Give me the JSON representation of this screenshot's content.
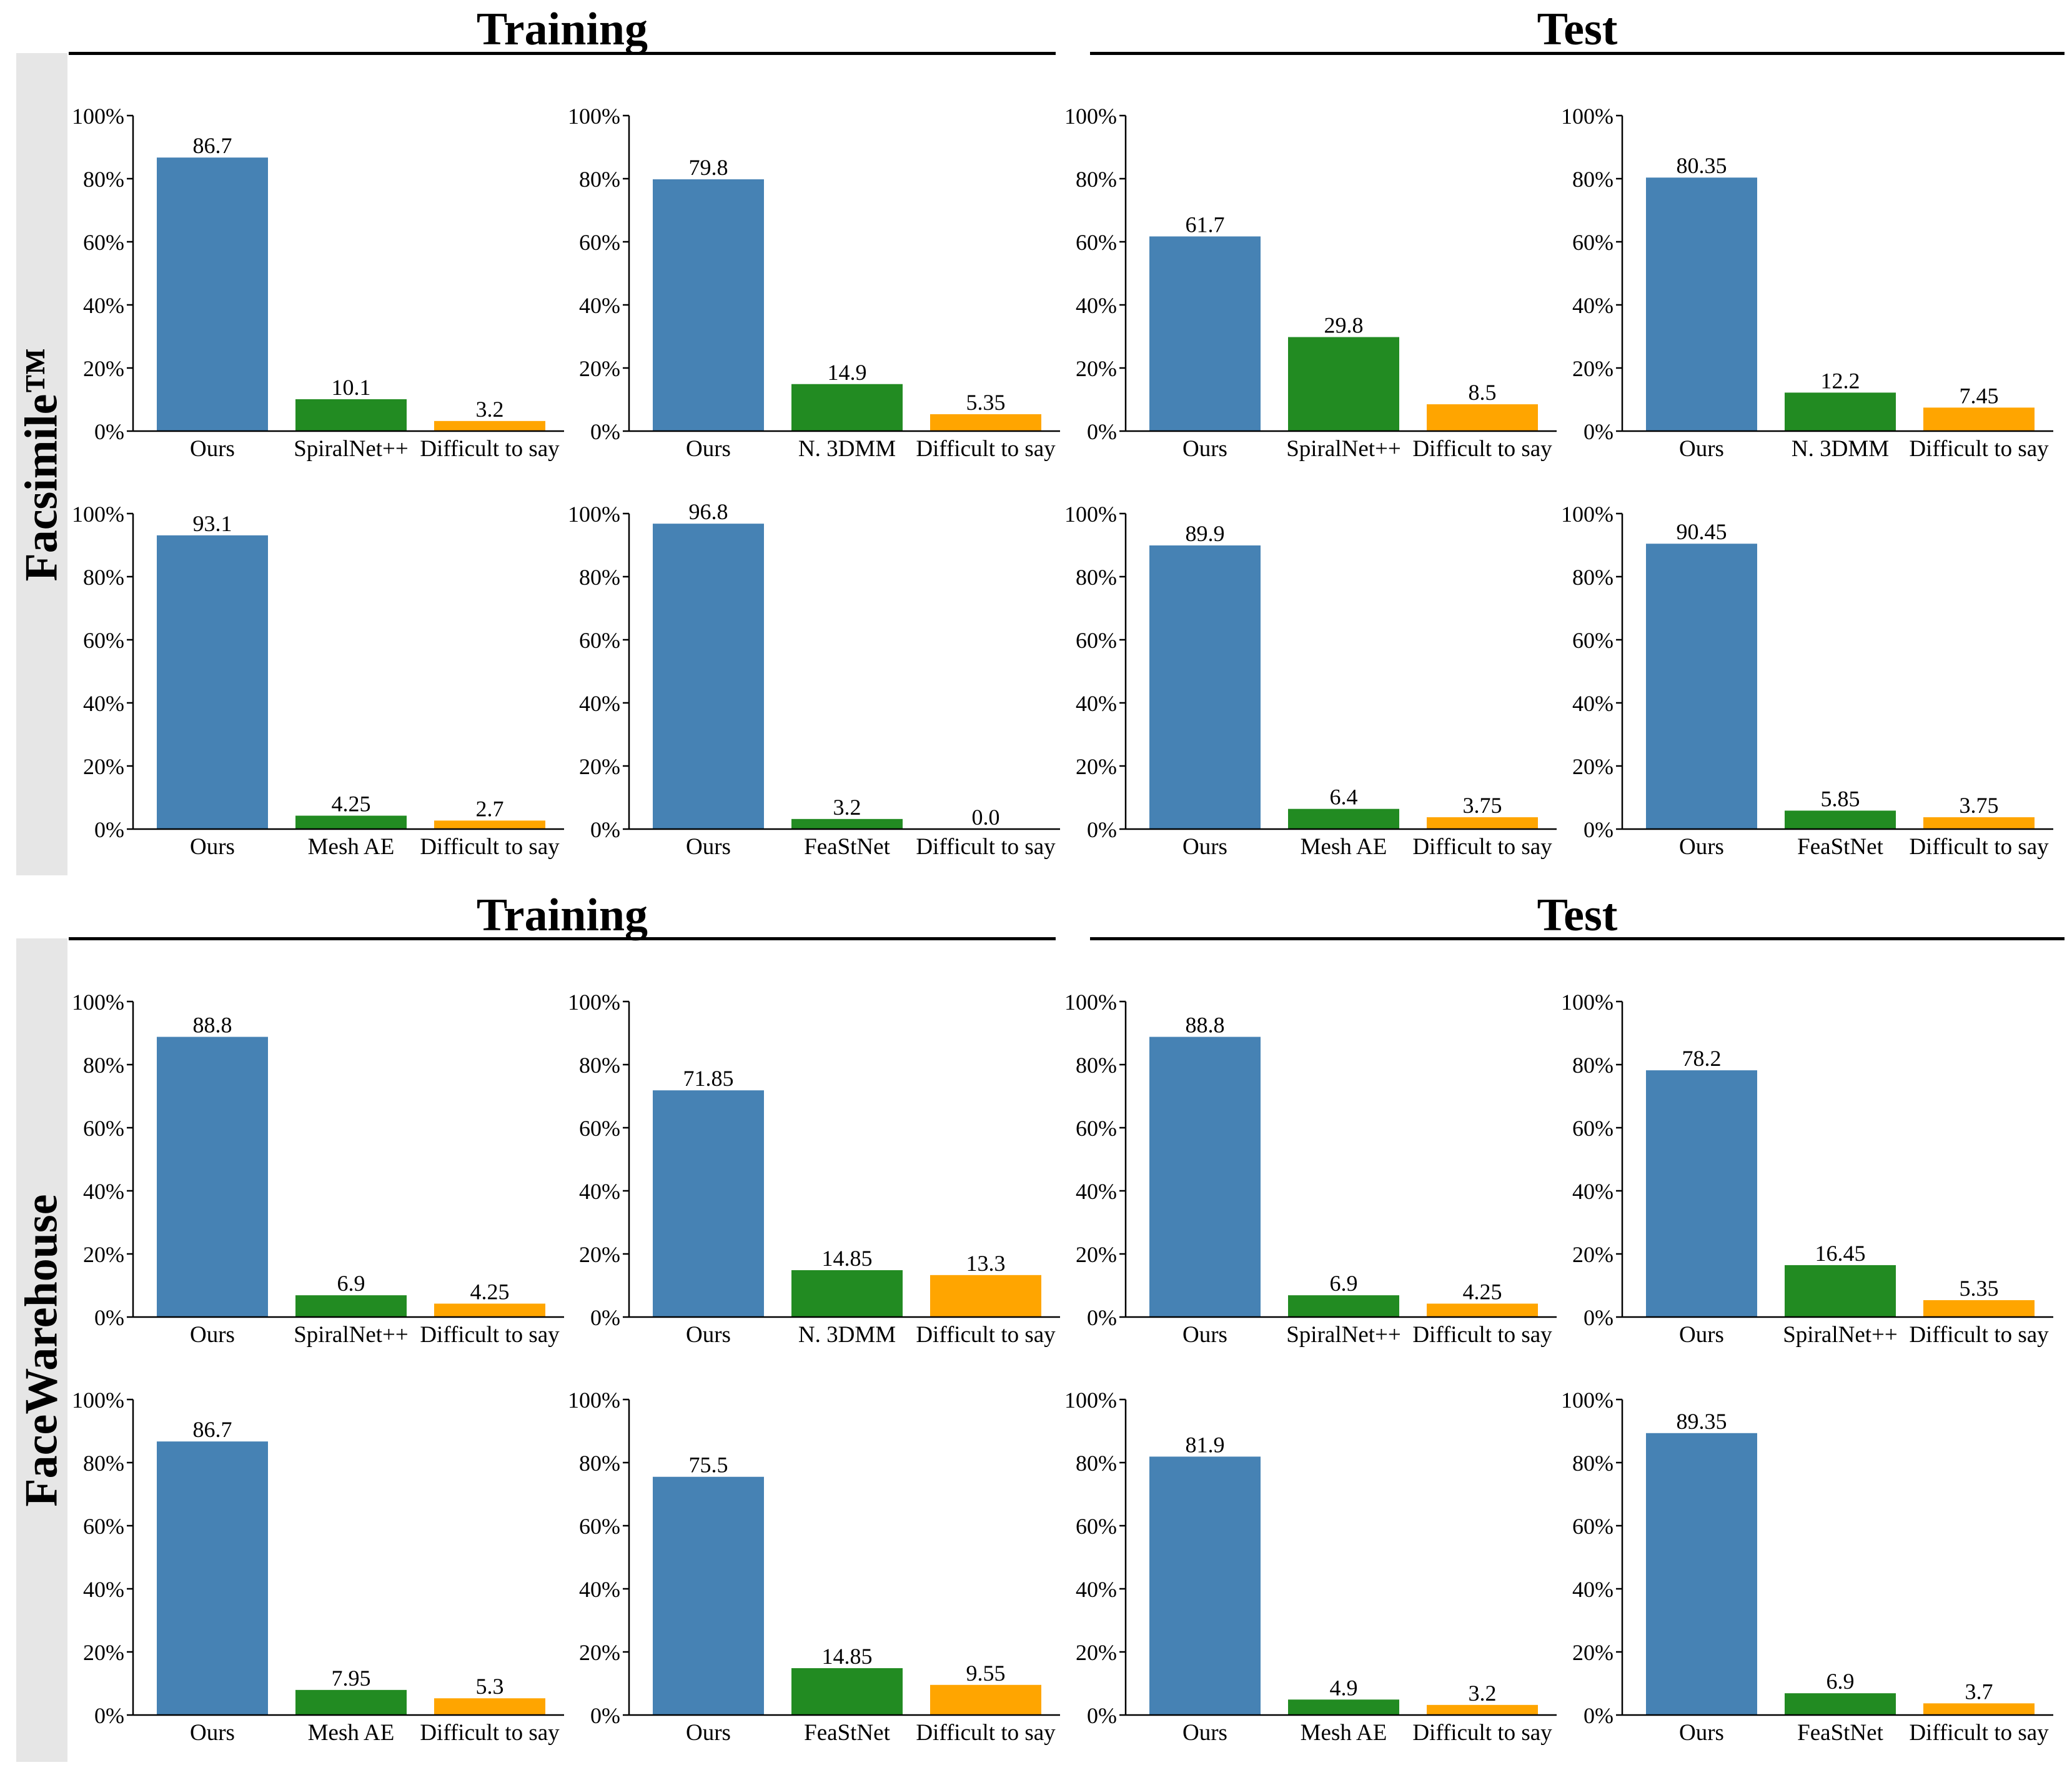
{
  "colors": {
    "ours": "#4682b4",
    "baseline": "#228b22",
    "difficult": "#ffa500",
    "band": "#e6e6e6"
  },
  "y_ticks": [
    "0%",
    "20%",
    "40%",
    "60%",
    "80%",
    "100%"
  ],
  "datasets": [
    {
      "label": "Facsimile™",
      "section_titles": [
        "Training",
        "Test"
      ]
    },
    {
      "label": "FaceWarehouse",
      "section_titles": [
        "Training",
        "Test"
      ]
    }
  ],
  "chart_data": [
    {
      "type": "bar",
      "dataset": "Facsimile™",
      "split": "Training",
      "categories": [
        "Ours",
        "SpiralNet++",
        "Difficult to say"
      ],
      "values": [
        86.7,
        10.1,
        3.2
      ],
      "value_labels": [
        "86.7",
        "10.1",
        "3.2"
      ],
      "ylim": [
        0,
        100
      ]
    },
    {
      "type": "bar",
      "dataset": "Facsimile™",
      "split": "Training",
      "categories": [
        "Ours",
        "N. 3DMM",
        "Difficult to say"
      ],
      "values": [
        79.8,
        14.9,
        5.35
      ],
      "value_labels": [
        "79.8",
        "14.9",
        "5.35"
      ],
      "ylim": [
        0,
        100
      ]
    },
    {
      "type": "bar",
      "dataset": "Facsimile™",
      "split": "Test",
      "categories": [
        "Ours",
        "SpiralNet++",
        "Difficult to say"
      ],
      "values": [
        61.7,
        29.8,
        8.5
      ],
      "value_labels": [
        "61.7",
        "29.8",
        "8.5"
      ],
      "ylim": [
        0,
        100
      ]
    },
    {
      "type": "bar",
      "dataset": "Facsimile™",
      "split": "Test",
      "categories": [
        "Ours",
        "N. 3DMM",
        "Difficult to say"
      ],
      "values": [
        80.35,
        12.2,
        7.45
      ],
      "value_labels": [
        "80.35",
        "12.2",
        "7.45"
      ],
      "ylim": [
        0,
        100
      ]
    },
    {
      "type": "bar",
      "dataset": "Facsimile™",
      "split": "Training",
      "categories": [
        "Ours",
        "Mesh AE",
        "Difficult to say"
      ],
      "values": [
        93.1,
        4.25,
        2.7
      ],
      "value_labels": [
        "93.1",
        "4.25",
        "2.7"
      ],
      "ylim": [
        0,
        100
      ]
    },
    {
      "type": "bar",
      "dataset": "Facsimile™",
      "split": "Training",
      "categories": [
        "Ours",
        "FeaStNet",
        "Difficult to say"
      ],
      "values": [
        96.8,
        3.2,
        0.0
      ],
      "value_labels": [
        "96.8",
        "3.2",
        "0.0"
      ],
      "ylim": [
        0,
        100
      ]
    },
    {
      "type": "bar",
      "dataset": "Facsimile™",
      "split": "Test",
      "categories": [
        "Ours",
        "Mesh AE",
        "Difficult to say"
      ],
      "values": [
        89.9,
        6.4,
        3.75
      ],
      "value_labels": [
        "89.9",
        "6.4",
        "3.75"
      ],
      "ylim": [
        0,
        100
      ]
    },
    {
      "type": "bar",
      "dataset": "Facsimile™",
      "split": "Test",
      "categories": [
        "Ours",
        "FeaStNet",
        "Difficult to say"
      ],
      "values": [
        90.45,
        5.85,
        3.75
      ],
      "value_labels": [
        "90.45",
        "5.85",
        "3.75"
      ],
      "ylim": [
        0,
        100
      ]
    },
    {
      "type": "bar",
      "dataset": "FaceWarehouse",
      "split": "Training",
      "categories": [
        "Ours",
        "SpiralNet++",
        "Difficult to say"
      ],
      "values": [
        88.8,
        6.9,
        4.25
      ],
      "value_labels": [
        "88.8",
        "6.9",
        "4.25"
      ],
      "ylim": [
        0,
        100
      ]
    },
    {
      "type": "bar",
      "dataset": "FaceWarehouse",
      "split": "Training",
      "categories": [
        "Ours",
        "N. 3DMM",
        "Difficult to say"
      ],
      "values": [
        71.85,
        14.85,
        13.3
      ],
      "value_labels": [
        "71.85",
        "14.85",
        "13.3"
      ],
      "ylim": [
        0,
        100
      ]
    },
    {
      "type": "bar",
      "dataset": "FaceWarehouse",
      "split": "Test",
      "categories": [
        "Ours",
        "SpiralNet++",
        "Difficult to say"
      ],
      "values": [
        88.8,
        6.9,
        4.25
      ],
      "value_labels": [
        "88.8",
        "6.9",
        "4.25"
      ],
      "ylim": [
        0,
        100
      ]
    },
    {
      "type": "bar",
      "dataset": "FaceWarehouse",
      "split": "Test",
      "categories": [
        "Ours",
        "SpiralNet++",
        "Difficult to say"
      ],
      "values": [
        78.2,
        16.45,
        5.35
      ],
      "value_labels": [
        "78.2",
        "16.45",
        "5.35"
      ],
      "ylim": [
        0,
        100
      ]
    },
    {
      "type": "bar",
      "dataset": "FaceWarehouse",
      "split": "Training",
      "categories": [
        "Ours",
        "Mesh AE",
        "Difficult to say"
      ],
      "values": [
        86.7,
        7.95,
        5.3
      ],
      "value_labels": [
        "86.7",
        "7.95",
        "5.3"
      ],
      "ylim": [
        0,
        100
      ]
    },
    {
      "type": "bar",
      "dataset": "FaceWarehouse",
      "split": "Training",
      "categories": [
        "Ours",
        "FeaStNet",
        "Difficult to say"
      ],
      "values": [
        75.5,
        14.85,
        9.55
      ],
      "value_labels": [
        "75.5",
        "14.85",
        "9.55"
      ],
      "ylim": [
        0,
        100
      ]
    },
    {
      "type": "bar",
      "dataset": "FaceWarehouse",
      "split": "Test",
      "categories": [
        "Ours",
        "Mesh AE",
        "Difficult to say"
      ],
      "values": [
        81.9,
        4.9,
        3.2
      ],
      "value_labels": [
        "81.9",
        "4.9",
        "3.2"
      ],
      "ylim": [
        0,
        100
      ]
    },
    {
      "type": "bar",
      "dataset": "FaceWarehouse",
      "split": "Test",
      "categories": [
        "Ours",
        "FeaStNet",
        "Difficult to say"
      ],
      "values": [
        89.35,
        6.9,
        3.7
      ],
      "value_labels": [
        "89.35",
        "6.9",
        "3.7"
      ],
      "ylim": [
        0,
        100
      ]
    }
  ]
}
